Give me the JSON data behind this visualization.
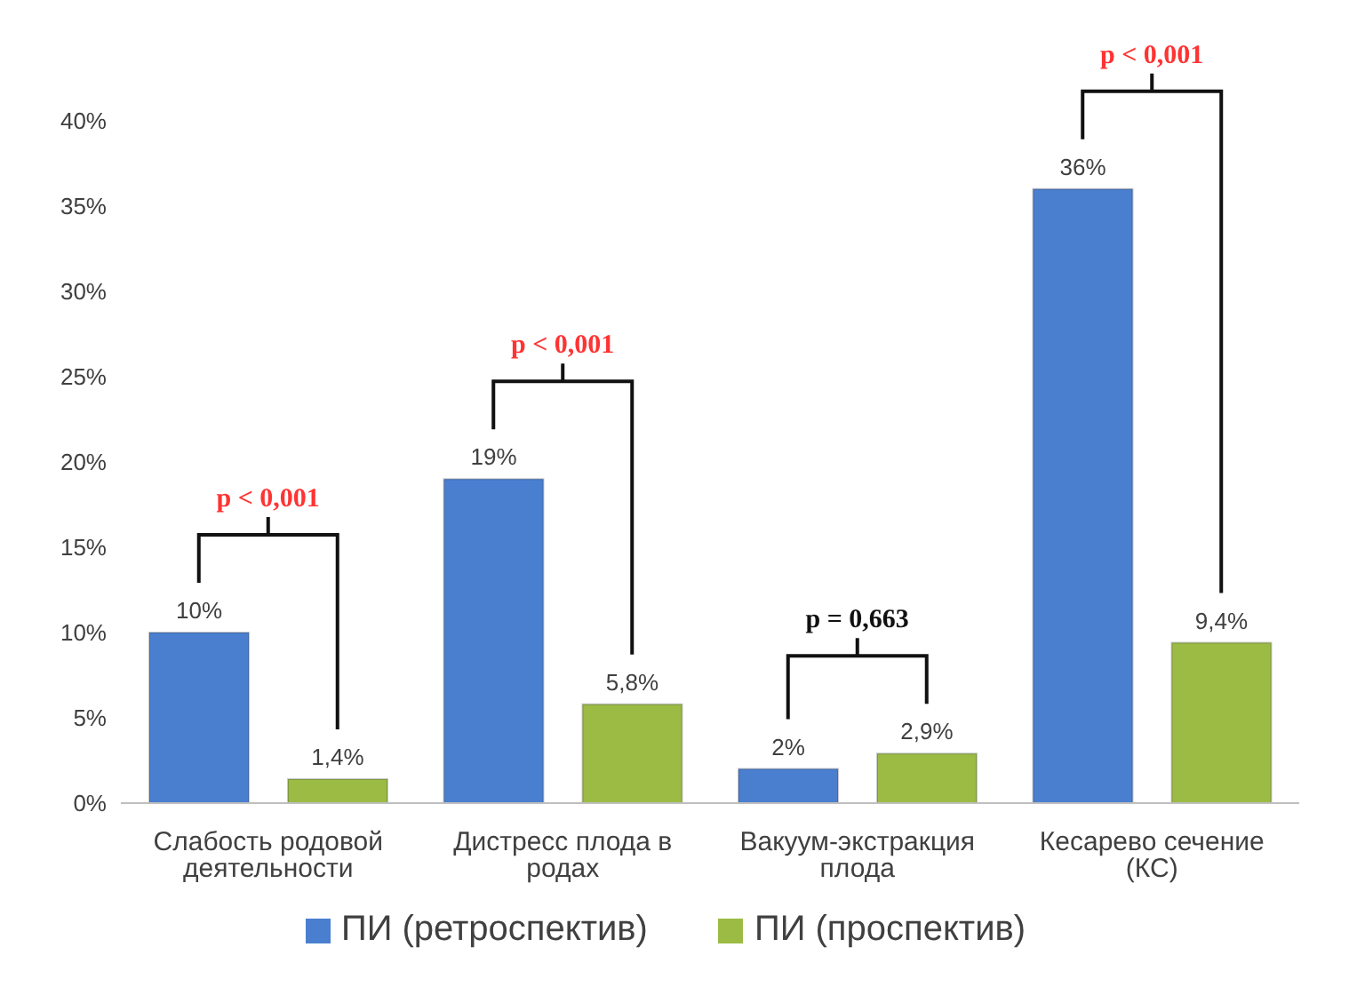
{
  "chart_data": {
    "type": "bar",
    "categories": [
      "Слабость родовой деятельности",
      "Дистресс плода в родах",
      "Вакуум-экстракция плода",
      "Кесарево сечение (КС)"
    ],
    "series": [
      {
        "name": "ПИ (ретроспектив)",
        "color": "#4a7fd0",
        "values": [
          10,
          19,
          2,
          36
        ],
        "value_labels": [
          "10%",
          "19%",
          "2%",
          "36%"
        ]
      },
      {
        "name": "ПИ (проспектив)",
        "color": "#9bbb45",
        "values": [
          1.4,
          5.8,
          2.9,
          9.4
        ],
        "value_labels": [
          "1,4%",
          "5,8%",
          "2,9%",
          "9,4%"
        ]
      }
    ],
    "ylim": [
      0,
      40
    ],
    "yticks": [
      {
        "value": 0,
        "label": "0%"
      },
      {
        "value": 5,
        "label": "5%"
      },
      {
        "value": 10,
        "label": "10%"
      },
      {
        "value": 15,
        "label": "15%"
      },
      {
        "value": 20,
        "label": "20%"
      },
      {
        "value": 25,
        "label": "25%"
      },
      {
        "value": 30,
        "label": "30%"
      },
      {
        "value": 35,
        "label": "35%"
      },
      {
        "value": 40,
        "label": "40%"
      }
    ],
    "grid": false,
    "legend": "bottom",
    "annotations": [
      "p < 0,001",
      "p < 0,001",
      "p = 0,663",
      "p < 0,001"
    ]
  }
}
